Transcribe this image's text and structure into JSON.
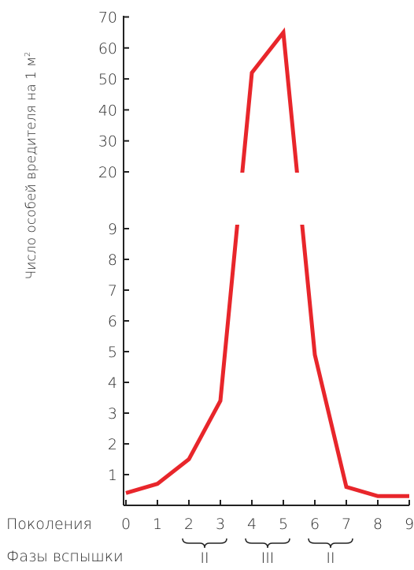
{
  "chart_data": {
    "type": "line",
    "ylabel": "Число особей вредителя на 1 м",
    "ylabel_sup": "2",
    "y_ticks_lower": [
      "1",
      "2",
      "3",
      "4",
      "5",
      "6",
      "7",
      "8",
      "9"
    ],
    "y_ticks_upper": [
      "20",
      "30",
      "40",
      "50",
      "60",
      "70"
    ],
    "y_axis_break": "between 9 and 20 (line interrupted)",
    "x_row_label": "Поколения",
    "x_categories": [
      "0",
      "1",
      "2",
      "3",
      "4",
      "5",
      "6",
      "7",
      "8",
      "9"
    ],
    "phase_row_label": "Фазы вспышки",
    "phases": [
      {
        "label": "II",
        "from": "2",
        "to": "3"
      },
      {
        "label": "III",
        "from": "4",
        "to": "5"
      },
      {
        "label": "II",
        "from": "6",
        "to": "7"
      }
    ],
    "series": [
      {
        "color": "#e8262b",
        "x": [
          0,
          1,
          2,
          3,
          4,
          5,
          6,
          7,
          8,
          9
        ],
        "y": [
          0.4,
          0.7,
          1.5,
          3.4,
          52,
          65,
          4.9,
          0.6,
          0.3,
          0.3
        ]
      }
    ],
    "grid": false,
    "legend": "none"
  }
}
